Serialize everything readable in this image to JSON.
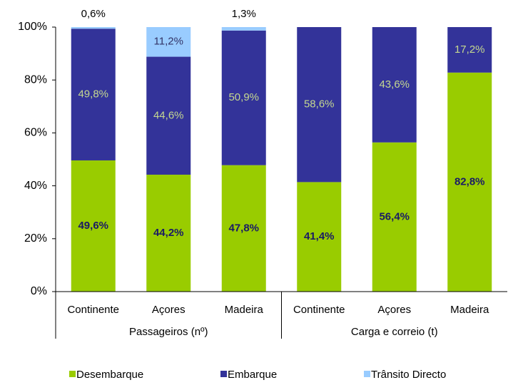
{
  "chart_data": {
    "type": "stacked_bar",
    "categories": [
      "Continente",
      "Açores",
      "Madeira",
      "Continente",
      "Açores",
      "Madeira"
    ],
    "groups": [
      "Passageiros (nº)",
      "Carga e correio (t)"
    ],
    "series": [
      {
        "name": "Desembarque",
        "color": "#99cc00",
        "values": [
          49.6,
          44.2,
          47.8,
          41.4,
          56.4,
          82.8
        ],
        "value_labels": [
          "49,6%",
          "44,2%",
          "47,8%",
          "41,4%",
          "56,4%",
          "82,8%"
        ]
      },
      {
        "name": "Embarque",
        "color": "#333399",
        "values": [
          49.8,
          44.6,
          50.9,
          58.6,
          43.6,
          17.2
        ],
        "value_labels": [
          "49,8%",
          "44,6%",
          "50,9%",
          "58,6%",
          "43,6%",
          "17,2%"
        ]
      },
      {
        "name": "Trânsito Directo",
        "color": "#99ccff",
        "values": [
          0.6,
          11.2,
          1.3,
          null,
          null,
          null
        ],
        "value_labels": [
          "0,6%",
          "11,2%",
          "1,3%",
          null,
          null,
          null
        ]
      }
    ],
    "ylim": [
      0,
      100
    ],
    "yticks": [
      {
        "value": 0,
        "label": "0%"
      },
      {
        "value": 20,
        "label": "20%"
      },
      {
        "value": 40,
        "label": "40%"
      },
      {
        "value": 60,
        "label": "60%"
      },
      {
        "value": 80,
        "label": "80%"
      },
      {
        "value": 100,
        "label": "100%"
      }
    ],
    "legend": "bottom"
  }
}
